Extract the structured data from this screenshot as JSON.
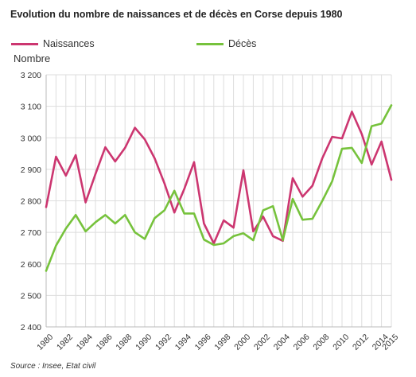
{
  "chart_data": {
    "type": "line",
    "title": "Evolution du nombre de naissances et de décès en Corse depuis 1980",
    "ylabel": "Nombre",
    "xlabel": "",
    "source": "Source : Insee, Etat civil",
    "ylim": [
      2400,
      3200
    ],
    "y_ticks": [
      2400,
      2500,
      2600,
      2700,
      2800,
      2900,
      3000,
      3100,
      3200
    ],
    "y_tick_labels": [
      "2 400",
      "2 500",
      "2 600",
      "2 700",
      "2 800",
      "2 900",
      "3 000",
      "3 100",
      "3 200"
    ],
    "x": [
      1980,
      1981,
      1982,
      1983,
      1984,
      1985,
      1986,
      1987,
      1988,
      1989,
      1990,
      1991,
      1992,
      1993,
      1994,
      1995,
      1996,
      1997,
      1998,
      1999,
      2000,
      2001,
      2002,
      2003,
      2004,
      2005,
      2006,
      2007,
      2008,
      2009,
      2010,
      2011,
      2012,
      2013,
      2014,
      2015
    ],
    "x_tick_labels": [
      "1980",
      "1982",
      "1984",
      "1986",
      "1988",
      "1990",
      "1992",
      "1994",
      "1996",
      "1998",
      "2000",
      "2002",
      "2004",
      "2006",
      "2008",
      "2010",
      "2012",
      "2014",
      "2015"
    ],
    "x_tick_values": [
      1980,
      1982,
      1984,
      1986,
      1988,
      1990,
      1992,
      1994,
      1996,
      1998,
      2000,
      2002,
      2004,
      2006,
      2008,
      2010,
      2012,
      2014,
      2015
    ],
    "grid": true,
    "legend_position": "top-left",
    "series": [
      {
        "name": "Naissances",
        "color": "#cc3670",
        "values": [
          2780,
          2940,
          2880,
          2945,
          2795,
          2885,
          2970,
          2925,
          2968,
          3032,
          2995,
          2935,
          2855,
          2763,
          2837,
          2923,
          2728,
          2665,
          2738,
          2715,
          2897,
          2703,
          2750,
          2688,
          2673,
          2872,
          2813,
          2848,
          2935,
          3003,
          2998,
          3083,
          3012,
          2915,
          2988,
          2867
        ]
      },
      {
        "name": "Décès",
        "color": "#76c23c",
        "values": [
          2578,
          2658,
          2712,
          2755,
          2703,
          2732,
          2755,
          2728,
          2755,
          2700,
          2679,
          2745,
          2770,
          2832,
          2760,
          2760,
          2677,
          2660,
          2665,
          2688,
          2697,
          2675,
          2770,
          2783,
          2675,
          2806,
          2740,
          2743,
          2800,
          2862,
          2965,
          2968,
          2920,
          3037,
          3045,
          3103
        ]
      }
    ]
  }
}
